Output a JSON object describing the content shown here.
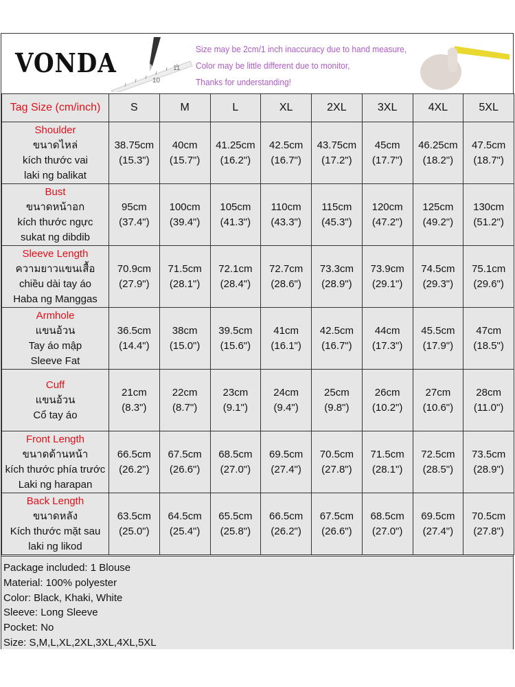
{
  "brand": {
    "logo_text": "VONDA"
  },
  "notes": [
    "Size may be 2cm/1 inch inaccuracy due to hand measure,",
    "Color may be little different due to monitor,",
    "Thanks for understanding!"
  ],
  "colors": {
    "label_red": "#e0101a",
    "note_purple": "#b05ac8",
    "cell_gray": "#e6e6e6"
  },
  "table": {
    "header_label": "Tag Size (cm/inch)",
    "sizes": [
      "S",
      "M",
      "L",
      "XL",
      "2XL",
      "3XL",
      "4XL",
      "5XL"
    ],
    "rows": [
      {
        "title": "Shoulder",
        "sub": [
          "ขนาดไหล่",
          "kích thước vai",
          "laki ng balikat"
        ],
        "cm": [
          "38.75cm",
          "40cm",
          "41.25cm",
          "42.5cm",
          "43.75cm",
          "45cm",
          "46.25cm",
          "47.5cm"
        ],
        "inch": [
          "(15.3\")",
          "(15.7\")",
          "(16.2\")",
          "(16.7\")",
          "(17.2\")",
          "(17.7\")",
          "(18.2\")",
          "(18.7\")"
        ]
      },
      {
        "title": "Bust",
        "sub": [
          "ขนาดหน้าอก",
          "kích thước ngực",
          "sukat ng dibdib"
        ],
        "cm": [
          "95cm",
          "100cm",
          "105cm",
          "110cm",
          "115cm",
          "120cm",
          "125cm",
          "130cm"
        ],
        "inch": [
          "(37.4\")",
          "(39.4\")",
          "(41.3\")",
          "(43.3\")",
          "(45.3\")",
          "(47.2\")",
          "(49.2\")",
          "(51.2\")"
        ]
      },
      {
        "title": "Sleeve Length",
        "sub": [
          "ความยาวแขนเสื้อ",
          "chiều dài tay áo",
          "Haba ng Manggas"
        ],
        "cm": [
          "70.9cm",
          "71.5cm",
          "72.1cm",
          "72.7cm",
          "73.3cm",
          "73.9cm",
          "74.5cm",
          "75.1cm"
        ],
        "inch": [
          "(27.9\")",
          "(28.1\")",
          "(28.4\")",
          "(28.6\")",
          "(28.9\")",
          "(29.1\")",
          "(29.3\")",
          "(29.6\")"
        ]
      },
      {
        "title": "Armhole",
        "sub": [
          "แขนอ้วน",
          "Tay áo mập",
          "Sleeve Fat"
        ],
        "cm": [
          "36.5cm",
          "38cm",
          "39.5cm",
          "41cm",
          "42.5cm",
          "44cm",
          "45.5cm",
          "47cm"
        ],
        "inch": [
          "(14.4\")",
          "(15.0\")",
          "(15.6\")",
          "(16.1\")",
          "(16.7\")",
          "(17.3\")",
          "(17.9\")",
          "(18.5\")"
        ]
      },
      {
        "title": "Cuff",
        "sub": [
          "แขนอ้วน",
          "Cổ tay áo"
        ],
        "cm": [
          "21cm",
          "22cm",
          "23cm",
          "24cm",
          "25cm",
          "26cm",
          "27cm",
          "28cm"
        ],
        "inch": [
          "(8.3\")",
          "(8.7\")",
          "(9.1\")",
          "(9.4\")",
          "(9.8\")",
          "(10.2\")",
          "(10.6\")",
          "(11.0\")"
        ]
      },
      {
        "title": "Front Length",
        "sub": [
          "ขนาดด้านหน้า",
          "kích thước phía trước",
          "Laki ng harapan"
        ],
        "cm": [
          "66.5cm",
          "67.5cm",
          "68.5cm",
          "69.5cm",
          "70.5cm",
          "71.5cm",
          "72.5cm",
          "73.5cm"
        ],
        "inch": [
          "(26.2\")",
          "(26.6\")",
          "(27.0\")",
          "(27.4\")",
          "(27.8\")",
          "(28.1\")",
          "(28.5\")",
          "(28.9\")"
        ]
      },
      {
        "title": "Back Length",
        "sub": [
          "ขนาดหลัง",
          "Kích thước mặt sau",
          "laki ng likod"
        ],
        "cm": [
          "63.5cm",
          "64.5cm",
          "65.5cm",
          "66.5cm",
          "67.5cm",
          "68.5cm",
          "69.5cm",
          "70.5cm"
        ],
        "inch": [
          "(25.0\")",
          "(25.4\")",
          "(25.8\")",
          "(26.2\")",
          "(26.6\")",
          "(27.0\")",
          "(27.4\")",
          "(27.8\")"
        ]
      }
    ]
  },
  "footer": [
    "Package included: 1 Blouse",
    "Material: 100% polyester",
    "Color: Black, Khaki, White",
    "Sleeve: Long Sleeve",
    "Pocket: No",
    "Size: S,M,L,XL,2XL,3XL,4XL,5XL"
  ]
}
